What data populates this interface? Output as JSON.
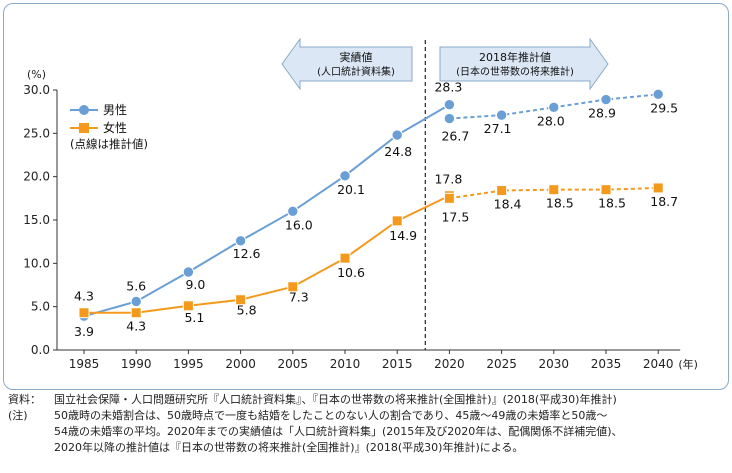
{
  "chart_data": {
    "type": "line",
    "x": [
      1985,
      1990,
      1995,
      2000,
      2005,
      2010,
      2015,
      2020,
      2025,
      2030,
      2035,
      2040
    ],
    "x_unit": "(年)",
    "y_unit": "(%)",
    "ylim": [
      0,
      30
    ],
    "y_ticks": [
      "0.0",
      "5.0",
      "10.0",
      "15.0",
      "20.0",
      "25.0",
      "30.0"
    ],
    "grid": false,
    "legend_position": "top-left",
    "legend_note": "(点線は推計値)",
    "series": [
      {
        "name": "男性",
        "color": "#6a9fd6",
        "actual": {
          "x": [
            1985,
            1990,
            1995,
            2000,
            2005,
            2010,
            2015,
            2020
          ],
          "values": [
            3.9,
            5.6,
            9.0,
            12.6,
            16.0,
            20.1,
            24.8,
            28.3
          ]
        },
        "estimate": {
          "x": [
            2020,
            2025,
            2030,
            2035,
            2040
          ],
          "values": [
            26.7,
            27.1,
            28.0,
            28.9,
            29.5
          ]
        },
        "labels": [
          "3.9",
          "5.6",
          "9.0",
          "12.6",
          "16.0",
          "20.1",
          "24.8",
          "28.3",
          "26.7",
          "27.1",
          "28.0",
          "28.9",
          "29.5"
        ]
      },
      {
        "name": "女性",
        "color": "#f39a1d",
        "actual": {
          "x": [
            1985,
            1990,
            1995,
            2000,
            2005,
            2010,
            2015,
            2020
          ],
          "values": [
            4.3,
            4.3,
            5.1,
            5.8,
            7.3,
            10.6,
            14.9,
            17.8
          ]
        },
        "estimate": {
          "x": [
            2020,
            2025,
            2030,
            2035,
            2040
          ],
          "values": [
            17.5,
            18.4,
            18.5,
            18.5,
            18.7
          ]
        },
        "labels": [
          "4.3",
          "4.3",
          "5.1",
          "5.8",
          "7.3",
          "10.6",
          "14.9",
          "17.8",
          "17.5",
          "18.4",
          "18.5",
          "18.5",
          "18.7"
        ]
      }
    ],
    "annotations": {
      "actual_arrow": [
        "実績値",
        "(人口統計資料集)"
      ],
      "estimate_arrow": [
        "2018年推計値",
        "(日本の世帯数の将来推計)"
      ]
    }
  },
  "notes": {
    "source_label": "資料：",
    "source_text": "国立社会保障・人口問題研究所『人口統計資料集』、『日本の世帯数の将来推計(全国推計)』(2018(平成30)年推計)",
    "note_label": "(注)",
    "note_line1": "50歳時の未婚割合は、50歳時点で一度も結婚をしたことのない人の割合であり、45歳～49歳の未婚率と50歳～",
    "note_line2": "54歳の未婚率の平均。2020年までの実績値は「人口統計資料集」(2015年及び2020年は、配偶関係不詳補完値)、",
    "note_line3": "2020年以降の推計値は『日本の世帯数の将来推計(全国推計)』(2018(平成30)年推計)による。"
  }
}
